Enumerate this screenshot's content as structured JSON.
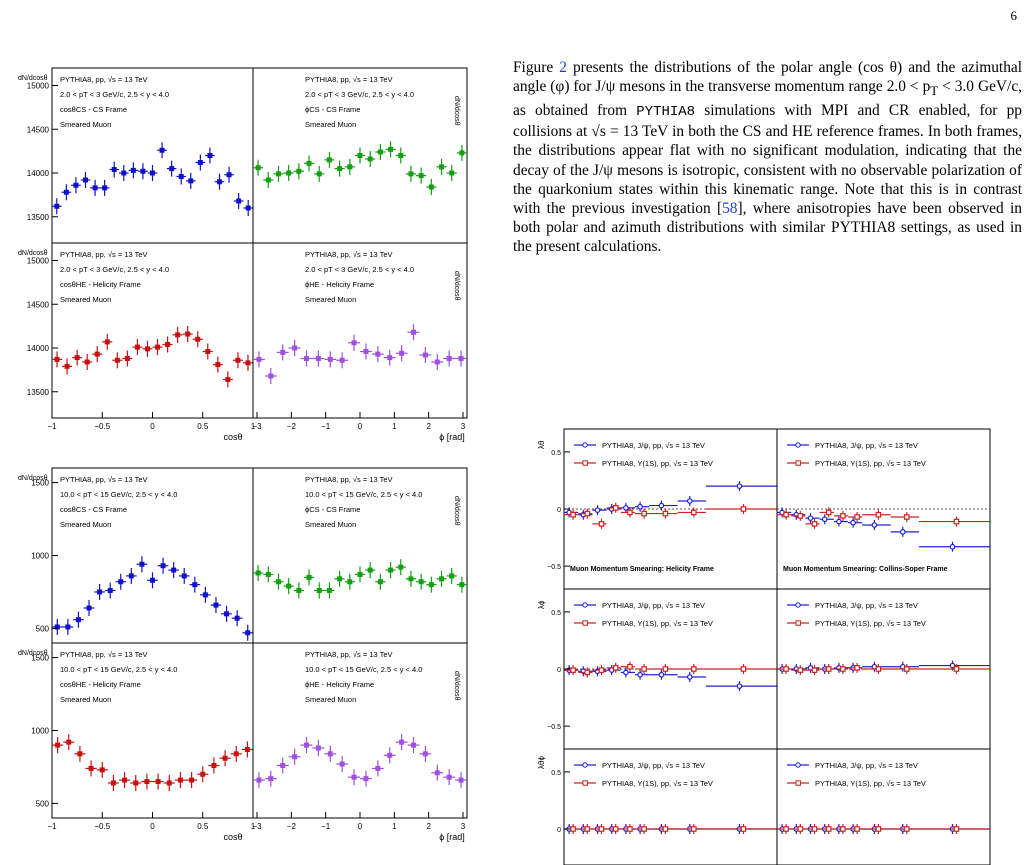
{
  "page_number": "6",
  "body_text": {
    "parts": [
      "Figure ",
      "2",
      " presents the distributions of the polar angle (cos θ) and the azimuthal angle (φ) for J/ψ mesons in the transverse momentum range 2.0 < p",
      "T",
      " < 3.0 GeV/c, as obtained from ",
      "PYTHIA8",
      " simulations with MPI and CR enabled, for pp collisions at √s = 13 TeV in both the CS and HE reference frames. In both frames, the distributions appear flat with no significant modulation, indicating that the decay of the J/ψ mesons is isotropic, consistent with no observable polarization of the quarkonium states within this kinematic range. Note that this is in contrast with the previous investigation [",
      "58",
      "], where anisotropies have been observed in both polar and azimuth distributions with similar PYTHIA8 settings, as used in the present calculations."
    ]
  },
  "colors": {
    "blue": "#1010c8",
    "green": "#10a010",
    "red": "#c81010",
    "purple": "#a050e0",
    "dark_blue": "#2020d0",
    "dark_red": "#d02020"
  },
  "chart_data": [
    {
      "type": "scatter",
      "id": "fig-low-pt",
      "x_labels": [
        "cosθ",
        "ϕ [rad]"
      ],
      "ylabel": "dN/dcosθ",
      "yticks": [
        "13500",
        "14000",
        "14500",
        "15000"
      ],
      "xticks_cos": [
        "−1",
        "−0.5",
        "0",
        "0.5",
        "1"
      ],
      "xticks_phi": [
        "−3",
        "−2",
        "−1",
        "0",
        "1",
        "2",
        "3"
      ],
      "ylim": [
        13200,
        15200
      ],
      "panels": [
        {
          "lines": [
            "PYTHIA8, pp, √s = 13 TeV",
            "2.0 < pT < 3 GeV/c, 2.5 < y < 4.0",
            "cosθCS - CS Frame",
            "Smeared Muon"
          ],
          "color": "#1010c8",
          "values": [
            13620,
            13780,
            13860,
            13920,
            13830,
            13830,
            14040,
            14000,
            14030,
            14020,
            14000,
            14260,
            14050,
            13960,
            13910,
            14120,
            14200,
            13900,
            13980,
            13680,
            13600
          ]
        },
        {
          "lines": [
            "PYTHIA8, pp, √s = 13 TeV",
            "2.0 < pT < 3 GeV/c, 2.5 < y < 4.0",
            "ϕCS - CS Frame",
            "Smeared Muon"
          ],
          "color": "#10a010",
          "values": [
            14060,
            13920,
            13990,
            14000,
            14020,
            14110,
            13990,
            14150,
            14050,
            14070,
            14200,
            14160,
            14240,
            14270,
            14200,
            13990,
            13970,
            13840,
            14070,
            14000,
            14230
          ]
        },
        {
          "lines": [
            "PYTHIA8, pp, √s = 13 TeV",
            "2.0 < pT < 3 GeV/c, 2.5 < y < 4.0",
            "cosθHE - Helicity Frame",
            "Smeared Muon"
          ],
          "color": "#c81010",
          "values": [
            13870,
            13790,
            13890,
            13840,
            13930,
            14070,
            13860,
            13880,
            14010,
            13990,
            14010,
            14040,
            14150,
            14160,
            14100,
            13960,
            13810,
            13640,
            13860,
            13830
          ]
        },
        {
          "lines": [
            "PYTHIA8, pp, √s = 13 TeV",
            "2.0 < pT < 3 GeV/c, 2.5 < y < 4.0",
            "ϕHE - Helicity Frame",
            "Smeared Muon"
          ],
          "color": "#a050e0",
          "values": [
            13870,
            13680,
            13950,
            14000,
            13880,
            13880,
            13870,
            13860,
            14060,
            13960,
            13930,
            13890,
            13940,
            14180,
            13920,
            13840,
            13880,
            13880
          ]
        }
      ]
    },
    {
      "type": "scatter",
      "id": "fig-high-pt",
      "x_labels": [
        "cosθ",
        "ϕ [rad]"
      ],
      "ylabel": "dN/dcosθ",
      "yticks": [
        "500",
        "1000",
        "1500"
      ],
      "xticks_cos": [
        "−1",
        "−0.5",
        "0",
        "0.5",
        "1"
      ],
      "xticks_phi": [
        "−3",
        "−2",
        "−1",
        "0",
        "1",
        "2",
        "3"
      ],
      "ylim": [
        400,
        1600
      ],
      "panels": [
        {
          "lines": [
            "PYTHIA8, pp, √s = 13 TeV",
            "10.0 < pT < 15 GeV/c, 2.5 < y < 4.0",
            "cosθCS - CS Frame",
            "Smeared Muon"
          ],
          "color": "#1010c8",
          "values": [
            510,
            510,
            560,
            640,
            750,
            760,
            820,
            860,
            940,
            830,
            930,
            900,
            860,
            800,
            730,
            660,
            600,
            570,
            470
          ]
        },
        {
          "lines": [
            "PYTHIA8, pp, √s = 13 TeV",
            "10.0 < pT < 15 GeV/c, 2.5 < y < 4.0",
            "ϕCS - CS Frame",
            "Smeared Muon"
          ],
          "color": "#10a010",
          "values": [
            880,
            870,
            820,
            790,
            760,
            850,
            760,
            760,
            840,
            820,
            870,
            900,
            820,
            900,
            920,
            840,
            820,
            800,
            840,
            860,
            800
          ]
        },
        {
          "lines": [
            "PYTHIA8, pp, √s = 13 TeV",
            "10.0 < pT < 15 GeV/c, 2.5 < y < 4.0",
            "cosθHE - Helicity Frame",
            "Smeared Muon"
          ],
          "color": "#c81010",
          "values": [
            900,
            920,
            840,
            740,
            730,
            640,
            660,
            640,
            650,
            650,
            640,
            660,
            660,
            700,
            760,
            810,
            840,
            870
          ]
        },
        {
          "lines": [
            "PYTHIA8, pp, √s = 13 TeV",
            "10.0 < pT < 15 GeV/c, 2.5 < y < 4.0",
            "ϕHE - Helicity Frame",
            "Smeared Muon"
          ],
          "color": "#a050e0",
          "values": [
            660,
            670,
            760,
            820,
            900,
            880,
            840,
            770,
            680,
            670,
            740,
            830,
            920,
            900,
            840,
            710,
            680,
            660
          ]
        }
      ]
    },
    {
      "type": "line",
      "id": "fig-lambda",
      "row_labels": [
        "λθ",
        "λϕ",
        "λθϕ"
      ],
      "yticks": [
        "−0.5",
        "0",
        "0.5"
      ],
      "ylim": [
        -0.7,
        0.7
      ],
      "series": [
        {
          "name": "PYTHIA8, J/ψ, pp, √s = 13 TeV",
          "color": "#2020d0"
        },
        {
          "name": "PYTHIA8, Υ(1S), pp, √s = 13 TeV",
          "color": "#d02020"
        }
      ],
      "column_titles": [
        "Muon Momentum Smearing: Helicity Frame",
        "Muon Momentum Smearing: Collins-Soper Frame"
      ],
      "bins_pt": [
        0,
        1,
        2,
        3,
        4,
        5,
        6,
        8,
        10,
        15
      ],
      "panels": [
        {
          "row": 0,
          "col": 0,
          "jpsi": [
            -0.03,
            -0.05,
            -0.01,
            0.0,
            0.01,
            0.02,
            0.03,
            0.07,
            0.2
          ],
          "ups": [
            -0.05,
            -0.04,
            -0.13,
            0.01,
            -0.03,
            -0.04,
            -0.04,
            -0.03,
            0.0
          ]
        },
        {
          "row": 0,
          "col": 1,
          "jpsi": [
            -0.03,
            -0.05,
            -0.08,
            -0.09,
            -0.11,
            -0.12,
            -0.14,
            -0.2,
            -0.33
          ],
          "ups": [
            -0.05,
            -0.06,
            -0.13,
            -0.03,
            -0.06,
            -0.07,
            -0.05,
            -0.07,
            -0.11
          ]
        },
        {
          "row": 1,
          "col": 0,
          "jpsi": [
            -0.01,
            -0.02,
            -0.02,
            -0.01,
            -0.03,
            -0.05,
            -0.05,
            -0.07,
            -0.15
          ],
          "ups": [
            -0.01,
            -0.03,
            -0.01,
            0.01,
            0.02,
            0.0,
            0.0,
            0.0,
            0.0
          ]
        },
        {
          "row": 1,
          "col": 1,
          "jpsi": [
            0.0,
            0.0,
            0.01,
            0.0,
            0.01,
            0.01,
            0.02,
            0.02,
            0.03
          ],
          "ups": [
            0.0,
            -0.01,
            -0.01,
            0.0,
            0.0,
            0.01,
            0.0,
            0.0,
            0.0
          ]
        },
        {
          "row": 2,
          "col": 0,
          "jpsi": [
            0,
            0,
            0,
            0,
            0,
            0,
            0,
            0,
            0
          ],
          "ups": [
            0,
            0,
            0,
            0,
            0,
            0,
            0,
            0,
            0
          ]
        },
        {
          "row": 2,
          "col": 1,
          "jpsi": [
            0,
            0,
            0,
            0,
            0,
            0,
            0,
            0,
            0
          ],
          "ups": [
            0,
            0,
            0,
            0,
            0,
            0,
            0,
            0,
            0
          ]
        }
      ]
    }
  ]
}
